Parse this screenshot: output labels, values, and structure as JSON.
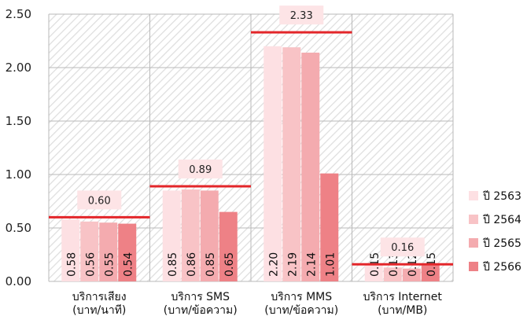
{
  "chart_data": {
    "type": "bar",
    "categories": [
      [
        "บริการเสียง",
        "(บาท/นาที)"
      ],
      [
        "บริการ SMS",
        "(บาท/ข้อความ)"
      ],
      [
        "บริการ MMS",
        "(บาท/ข้อความ)"
      ],
      [
        "บริการ Internet",
        "(บาท/MB)"
      ]
    ],
    "series": [
      {
        "name": "ปี 2563",
        "color": "#fde0e3",
        "values": [
          0.58,
          0.85,
          2.2,
          0.15
        ],
        "labels": [
          "0.58",
          "0.85",
          "2.20",
          "0.15"
        ]
      },
      {
        "name": "ปี 2564",
        "color": "#f8c3c6",
        "values": [
          0.56,
          0.86,
          2.19,
          0.13
        ],
        "labels": [
          "0.56",
          "0.86",
          "2.19",
          "0.13"
        ]
      },
      {
        "name": "ปี 2565",
        "color": "#f4abaf",
        "values": [
          0.55,
          0.85,
          2.14,
          0.12
        ],
        "labels": [
          "0.55",
          "0.85",
          "2.14",
          "0.12"
        ]
      },
      {
        "name": "ปี 2566",
        "color": "#ee8186",
        "values": [
          0.54,
          0.65,
          1.01,
          0.15
        ],
        "labels": [
          "0.54",
          "0.65",
          "1.01",
          "0.15"
        ]
      }
    ],
    "caps": {
      "values": [
        0.6,
        0.89,
        2.33,
        0.16
      ],
      "labels": [
        "0.60",
        "0.89",
        "2.33",
        "0.16"
      ],
      "color": "#e3262a"
    },
    "y_ticks": [
      "0.00",
      "0.50",
      "1.00",
      "1.50",
      "2.00",
      "2.50"
    ],
    "ylim": [
      0,
      2.5
    ],
    "grid": true,
    "legend_position": "right"
  }
}
